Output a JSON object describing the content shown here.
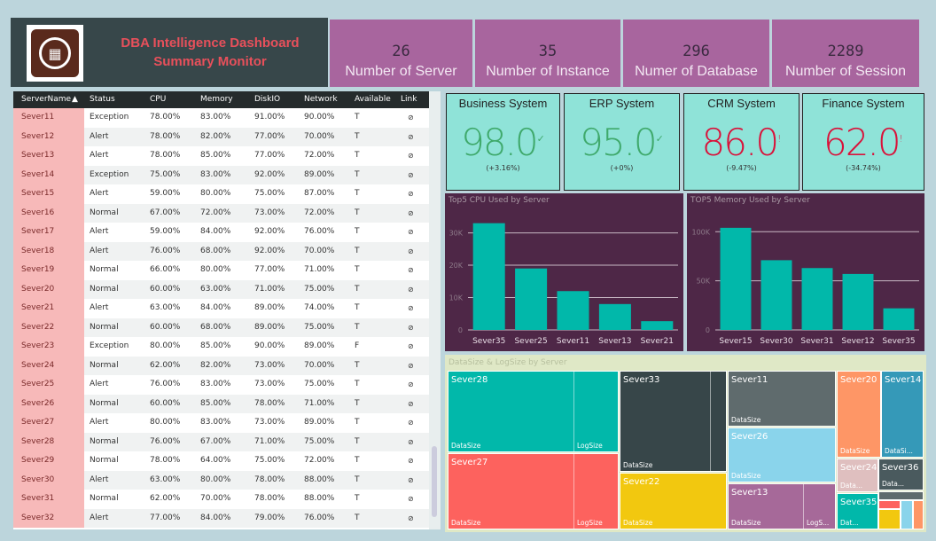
{
  "header": {
    "title_line1": "DBA Intelligence Dashboard",
    "title_line2": "Summary Monitor",
    "logo_icon": "package-box-icon"
  },
  "kpis": [
    {
      "value": "26",
      "label": "Number of Server"
    },
    {
      "value": "35",
      "label": "Number of Instance"
    },
    {
      "value": "296",
      "label": "Numer of Database"
    },
    {
      "value": "2289",
      "label": "Number of Session"
    }
  ],
  "table": {
    "columns": [
      "ServerName",
      "Status",
      "CPU",
      "Memory",
      "DiskIO",
      "Network",
      "Available",
      "Link"
    ],
    "sort_icon": "sort-ascending-icon",
    "rows": [
      [
        "Sever11",
        "Exception",
        "78.00%",
        "83.00%",
        "91.00%",
        "90.00%",
        "T"
      ],
      [
        "Sever12",
        "Alert",
        "78.00%",
        "82.00%",
        "77.00%",
        "70.00%",
        "T"
      ],
      [
        "Sever13",
        "Alert",
        "78.00%",
        "85.00%",
        "77.00%",
        "72.00%",
        "T"
      ],
      [
        "Sever14",
        "Exception",
        "75.00%",
        "83.00%",
        "92.00%",
        "89.00%",
        "T"
      ],
      [
        "Sever15",
        "Alert",
        "59.00%",
        "80.00%",
        "75.00%",
        "87.00%",
        "T"
      ],
      [
        "Sever16",
        "Normal",
        "67.00%",
        "72.00%",
        "73.00%",
        "72.00%",
        "T"
      ],
      [
        "Sever17",
        "Alert",
        "59.00%",
        "84.00%",
        "92.00%",
        "76.00%",
        "T"
      ],
      [
        "Sever18",
        "Alert",
        "76.00%",
        "68.00%",
        "92.00%",
        "70.00%",
        "T"
      ],
      [
        "Sever19",
        "Normal",
        "66.00%",
        "80.00%",
        "77.00%",
        "71.00%",
        "T"
      ],
      [
        "Sever20",
        "Normal",
        "60.00%",
        "63.00%",
        "71.00%",
        "75.00%",
        "T"
      ],
      [
        "Sever21",
        "Alert",
        "63.00%",
        "84.00%",
        "89.00%",
        "74.00%",
        "T"
      ],
      [
        "Sever22",
        "Normal",
        "60.00%",
        "68.00%",
        "89.00%",
        "75.00%",
        "T"
      ],
      [
        "Sever23",
        "Exception",
        "80.00%",
        "85.00%",
        "90.00%",
        "89.00%",
        "F"
      ],
      [
        "Sever24",
        "Normal",
        "62.00%",
        "82.00%",
        "73.00%",
        "70.00%",
        "T"
      ],
      [
        "Sever25",
        "Alert",
        "76.00%",
        "83.00%",
        "73.00%",
        "75.00%",
        "T"
      ],
      [
        "Sever26",
        "Normal",
        "60.00%",
        "85.00%",
        "78.00%",
        "71.00%",
        "T"
      ],
      [
        "Sever27",
        "Alert",
        "80.00%",
        "83.00%",
        "73.00%",
        "89.00%",
        "T"
      ],
      [
        "Sever28",
        "Normal",
        "76.00%",
        "67.00%",
        "71.00%",
        "75.00%",
        "T"
      ],
      [
        "Sever29",
        "Normal",
        "78.00%",
        "64.00%",
        "75.00%",
        "72.00%",
        "T"
      ],
      [
        "Sever30",
        "Alert",
        "63.00%",
        "80.00%",
        "78.00%",
        "88.00%",
        "T"
      ],
      [
        "Sever31",
        "Normal",
        "62.00%",
        "70.00%",
        "78.00%",
        "88.00%",
        "T"
      ],
      [
        "Sever32",
        "Alert",
        "77.00%",
        "84.00%",
        "79.00%",
        "76.00%",
        "T"
      ]
    ]
  },
  "systems": [
    {
      "title": "Business System",
      "value": "98.0",
      "indicator": "✓",
      "delta": "(+3.16%)",
      "color": "#3fa96b"
    },
    {
      "title": "ERP System",
      "value": "95.0",
      "indicator": "✓",
      "delta": "(+0%)",
      "color": "#3fa96b"
    },
    {
      "title": "CRM System",
      "value": "86.0",
      "indicator": "!",
      "delta": "(-9.47%)",
      "color": "#d9123a"
    },
    {
      "title": "Finance System",
      "value": "62.0",
      "indicator": "!",
      "delta": "(-34.74%)",
      "color": "#d9123a"
    }
  ],
  "chart_data": [
    {
      "type": "bar",
      "title": "Top5 CPU Used  by Server",
      "categories": [
        "Sever35",
        "Sever25",
        "Sever11",
        "Sever13",
        "Sever21"
      ],
      "values": [
        33000,
        19000,
        12000,
        8000,
        2700
      ],
      "yticks": [
        "0",
        "10K",
        "20K",
        "30K"
      ],
      "ytick_values": [
        0,
        10000,
        20000,
        30000
      ],
      "ylim": [
        0,
        34000
      ],
      "bar_color": "#01b8aa"
    },
    {
      "type": "bar",
      "title": "TOP5 Memory Used by Server",
      "categories": [
        "Sever15",
        "Sever30",
        "Sever31",
        "Sever12",
        "Sever35"
      ],
      "values": [
        104000,
        71000,
        63000,
        57000,
        22000
      ],
      "yticks": [
        "0",
        "50K",
        "100K"
      ],
      "ytick_values": [
        0,
        50000,
        100000
      ],
      "ylim": [
        0,
        112000
      ],
      "bar_color": "#01b8aa"
    }
  ],
  "treemap": {
    "title": "DataSize & LogSize by Server",
    "items": [
      {
        "name": "Sever28",
        "a": "DataSize",
        "b": "LogSize"
      },
      {
        "name": "Sever27",
        "a": "DataSize",
        "b": "LogSize"
      },
      {
        "name": "Sever33",
        "a": "DataSize"
      },
      {
        "name": "Sever22",
        "a": "DataSize"
      },
      {
        "name": "Sever11",
        "a": "DataSize"
      },
      {
        "name": "Sever26",
        "a": "DataSize"
      },
      {
        "name": "Sever13",
        "a": "DataSize",
        "b": "LogS..."
      },
      {
        "name": "Sever20",
        "a": "DataSize"
      },
      {
        "name": "Sever14",
        "a": "DataSi..."
      },
      {
        "name": "Sever24",
        "a": "Data..."
      },
      {
        "name": "Sever36",
        "a": "Data..."
      },
      {
        "name": "Sever35",
        "a": "Dat..."
      }
    ]
  }
}
